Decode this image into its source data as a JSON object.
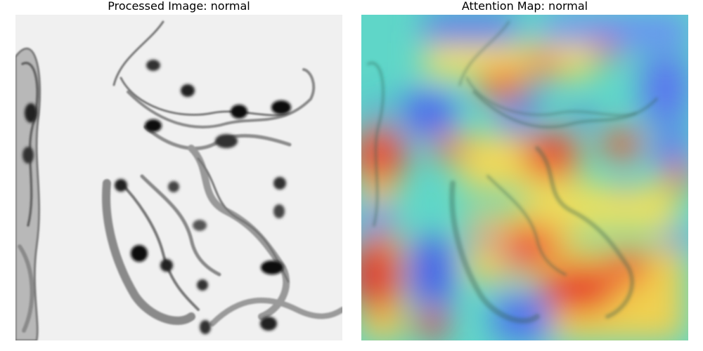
{
  "figure": {
    "panels": [
      {
        "title": "Processed Image: normal"
      },
      {
        "title": "Attention Map: normal"
      }
    ]
  }
}
